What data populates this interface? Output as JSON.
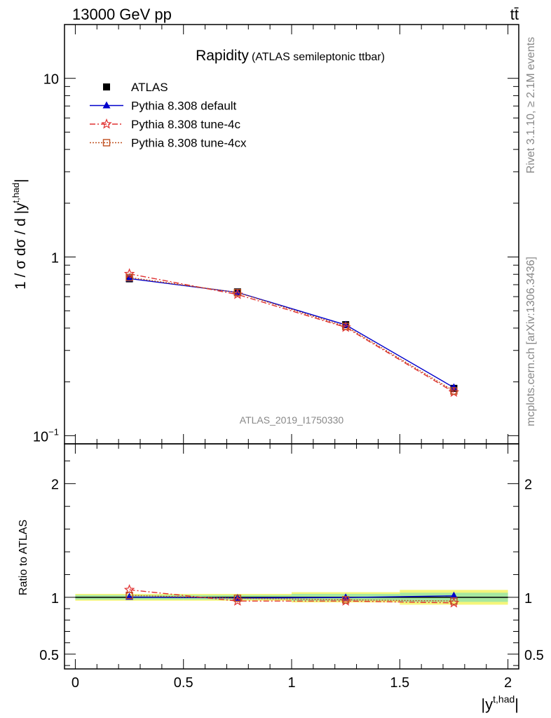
{
  "header": {
    "left": "13000 GeV pp",
    "right": "tt̄"
  },
  "side_text": {
    "rivet": "Rivet 3.1.10, ≥ 2.1M events",
    "mcplots": "mcplots.cern.ch [arXiv:1306.3436]"
  },
  "chart_data": [
    {
      "type": "line",
      "title": "Rapidity",
      "subtitle": "(ATLAS semileptonic ttbar)",
      "ylabel": "1 / σ dσ / d |y",
      "ylabel_sup": "t,had",
      "ylabel_end": "|",
      "yscale": "log",
      "xlim": [
        -0.05,
        2.05
      ],
      "ylim": [
        0.09,
        20
      ],
      "yticks": [
        {
          "v": 0.1,
          "base": "10",
          "exp": "−1"
        },
        {
          "v": 1,
          "base": "1",
          "exp": ""
        },
        {
          "v": 10,
          "base": "10",
          "exp": ""
        }
      ],
      "analysis_label": "ATLAS_2019_I1750330",
      "legend_position": "top-left",
      "x": [
        0.25,
        0.75,
        1.25,
        1.75
      ],
      "series": [
        {
          "name": "ATLAS",
          "values": [
            0.755,
            0.638,
            0.418,
            0.184
          ],
          "color": "#000000",
          "marker": "square-filled",
          "line": "none"
        },
        {
          "name": "Pythia 8.308 default",
          "values": [
            0.757,
            0.634,
            0.417,
            0.186
          ],
          "color": "#0000cc",
          "marker": "triangle",
          "line": "solid"
        },
        {
          "name": "Pythia 8.308 tune-4c",
          "values": [
            0.805,
            0.617,
            0.404,
            0.175
          ],
          "color": "#e03030",
          "marker": "star",
          "line": "dashdot"
        },
        {
          "name": "Pythia 8.308 tune-4cx",
          "values": [
            0.768,
            0.632,
            0.409,
            0.178
          ],
          "color": "#c05020",
          "marker": "square-open",
          "line": "dotted"
        }
      ]
    },
    {
      "type": "line",
      "ylabel": "Ratio to ATLAS",
      "xlabel": "|y",
      "xlabel_sup": "t,had",
      "xlabel_end": "|",
      "xlim": [
        -0.05,
        2.05
      ],
      "ylim": [
        0.37,
        2.35
      ],
      "xticks": [
        "0",
        "0.5",
        "1",
        "1.5",
        "2"
      ],
      "yticks": [
        "0.5",
        "1",
        "2"
      ],
      "x": [
        0.25,
        0.75,
        1.25,
        1.75
      ],
      "band_yellow": [
        0.03,
        0.03,
        0.045,
        0.065
      ],
      "band_green": [
        0.02,
        0.02,
        0.03,
        0.04
      ],
      "series": [
        {
          "name": "Pythia 8.308 default",
          "values": [
            1.003,
            0.994,
            0.998,
            1.013
          ],
          "color": "#0000cc",
          "marker": "triangle",
          "line": "solid"
        },
        {
          "name": "Pythia 8.308 tune-4c",
          "values": [
            1.066,
            0.967,
            0.967,
            0.951
          ],
          "color": "#e03030",
          "marker": "star",
          "line": "dashdot"
        },
        {
          "name": "Pythia 8.308 tune-4cx",
          "values": [
            1.017,
            0.991,
            0.978,
            0.967
          ],
          "color": "#c05020",
          "marker": "square-open",
          "line": "dotted"
        }
      ]
    }
  ]
}
